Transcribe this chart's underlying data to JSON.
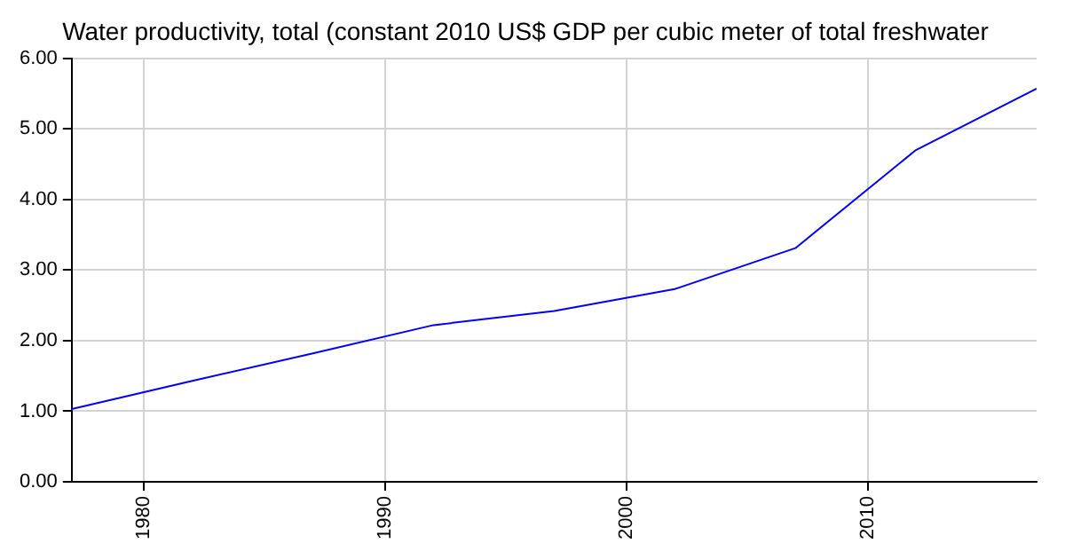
{
  "chart_data": {
    "type": "line",
    "title": "Water productivity, total (constant 2010 US$ GDP per cubic meter of total freshwater",
    "x": [
      1977,
      1982,
      1987,
      1992,
      1997,
      2002,
      2007,
      2012,
      2017
    ],
    "series": [
      {
        "color": "#0000ff",
        "values": [
          1.03,
          1.43,
          1.82,
          2.22,
          2.42,
          2.73,
          3.31,
          4.7,
          5.57
        ]
      }
    ],
    "xlim": [
      1977,
      2017
    ],
    "xticks": [
      1980,
      1990,
      2000,
      2010
    ],
    "ylim": [
      0,
      6
    ],
    "yticks": [
      {
        "value": 0,
        "label": "0.00"
      },
      {
        "value": 1,
        "label": "1.00"
      },
      {
        "value": 2,
        "label": "2.00"
      },
      {
        "value": 3,
        "label": "3.00"
      },
      {
        "value": 4,
        "label": "4.00"
      },
      {
        "value": 5,
        "label": "5.00"
      },
      {
        "value": 6,
        "label": "6.00"
      }
    ],
    "grid": true,
    "legend": false,
    "marker": "none",
    "line_style": "solid"
  }
}
